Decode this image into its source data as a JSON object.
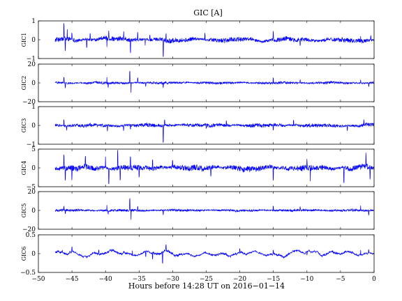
{
  "chart_data": {
    "type": "line",
    "title": "GIC [A]",
    "xlabel": "Hours before  14:28 UT on 2016−01−14",
    "xlim": [
      -50,
      0
    ],
    "x_ticks": [
      "−50",
      "−45",
      "−40",
      "−35",
      "−30",
      "−25",
      "−20",
      "−15",
      "−10",
      "−5",
      "0"
    ],
    "line_color": "#0000ff",
    "grid": false,
    "data_x_range": [
      -47.5,
      0
    ],
    "panels": [
      {
        "ylabel": "GIC1",
        "ylim": [
          -1,
          1
        ],
        "yticks": [
          "−1",
          "0",
          "1"
        ],
        "noise": 0.09,
        "drift": 0.05,
        "events": [
          [
            -46.2,
            0.75
          ],
          [
            -46.0,
            -0.55
          ],
          [
            -45.7,
            0.45
          ],
          [
            -45.0,
            0.35
          ],
          [
            -42.8,
            -0.4
          ],
          [
            -42.3,
            0.3
          ],
          [
            -39.8,
            -0.5
          ],
          [
            -39.5,
            0.35
          ],
          [
            -37.3,
            0.3
          ],
          [
            -36.3,
            -0.55
          ],
          [
            -35.2,
            0.4
          ],
          [
            -34.1,
            -0.35
          ],
          [
            -33.4,
            0.3
          ],
          [
            -31.4,
            -0.8
          ],
          [
            -31.0,
            0.3
          ],
          [
            -25.2,
            0.3
          ],
          [
            -15.0,
            0.4
          ],
          [
            -11.0,
            -0.3
          ],
          [
            -2.0,
            0.3
          ],
          [
            -0.5,
            0.25
          ]
        ]
      },
      {
        "ylabel": "GIC2",
        "ylim": [
          -20,
          20
        ],
        "yticks": [
          "−20",
          "0",
          "20"
        ],
        "noise": 0.9,
        "drift": 0.3,
        "events": [
          [
            -46.2,
            6
          ],
          [
            -46.0,
            -5
          ],
          [
            -39.8,
            5
          ],
          [
            -39.6,
            -4
          ],
          [
            -36.4,
            12
          ],
          [
            -36.2,
            -11
          ],
          [
            -35.2,
            5
          ],
          [
            -34.0,
            -4
          ],
          [
            -31.4,
            -4
          ],
          [
            -15.0,
            5
          ],
          [
            -11.0,
            3
          ],
          [
            -2.0,
            4
          ],
          [
            -0.8,
            -4
          ]
        ]
      },
      {
        "ylabel": "GIC3",
        "ylim": [
          -1,
          1
        ],
        "yticks": [
          "−1",
          "0",
          "1"
        ],
        "noise": 0.07,
        "drift": 0.03,
        "events": [
          [
            -46.2,
            0.3
          ],
          [
            -45.8,
            -0.2
          ],
          [
            -39.7,
            -0.3
          ],
          [
            -37.3,
            -0.25
          ],
          [
            -36.3,
            -0.25
          ],
          [
            -31.4,
            -0.85
          ],
          [
            -31.2,
            0.3
          ],
          [
            -25.0,
            -0.2
          ],
          [
            -22.0,
            0.2
          ],
          [
            -15.0,
            -0.3
          ],
          [
            -12.0,
            0.25
          ],
          [
            -4.0,
            -0.25
          ],
          [
            -1.5,
            0.25
          ]
        ]
      },
      {
        "ylabel": "GIC4",
        "ylim": [
          -5,
          5
        ],
        "yticks": [
          "−5",
          "0",
          "5"
        ],
        "noise": 0.55,
        "drift": 0.3,
        "events": [
          [
            -46.2,
            3.5
          ],
          [
            -46.0,
            -3
          ],
          [
            -45.0,
            -2.5
          ],
          [
            -43.0,
            2.5
          ],
          [
            -40.0,
            3
          ],
          [
            -39.5,
            -4
          ],
          [
            -38.2,
            4.5
          ],
          [
            -37.8,
            -3.5
          ],
          [
            -36.3,
            3.5
          ],
          [
            -35.0,
            -3
          ],
          [
            -33.0,
            2.5
          ],
          [
            -30.0,
            2
          ],
          [
            -24.3,
            -2
          ],
          [
            -15.0,
            -3.5
          ],
          [
            -10.0,
            2
          ],
          [
            -9.5,
            -4
          ],
          [
            -4.5,
            -4
          ],
          [
            -1.2,
            3
          ],
          [
            -0.6,
            -2.5
          ]
        ]
      },
      {
        "ylabel": "GIC5",
        "ylim": [
          -20,
          20
        ],
        "yticks": [
          "−20",
          "0",
          "20"
        ],
        "noise": 0.9,
        "drift": 0.3,
        "events": [
          [
            -46.2,
            5
          ],
          [
            -46.0,
            -4
          ],
          [
            -39.8,
            5
          ],
          [
            -39.6,
            -4
          ],
          [
            -36.4,
            11
          ],
          [
            -36.2,
            -10
          ],
          [
            -35.2,
            4
          ],
          [
            -31.4,
            -4
          ],
          [
            -15.0,
            5
          ],
          [
            -11.0,
            3
          ],
          [
            -2.0,
            4
          ],
          [
            -0.8,
            -5
          ]
        ]
      },
      {
        "ylabel": "GIC6",
        "ylim": [
          -0.5,
          0.5
        ],
        "yticks": [
          "−0.5",
          "0",
          "0.5"
        ],
        "noise": 0.018,
        "drift": 0.07,
        "events": [
          [
            -45.0,
            0.12
          ],
          [
            -41.0,
            0.1
          ],
          [
            -36.0,
            0.12
          ],
          [
            -34.0,
            -0.15
          ],
          [
            -33.0,
            -0.15
          ],
          [
            -31.5,
            -0.3
          ],
          [
            -31.0,
            0.15
          ],
          [
            -20.0,
            0.1
          ],
          [
            -15.0,
            0.1
          ],
          [
            -10.0,
            -0.08
          ],
          [
            -2.0,
            0.12
          ],
          [
            -0.8,
            0.08
          ]
        ]
      }
    ]
  }
}
